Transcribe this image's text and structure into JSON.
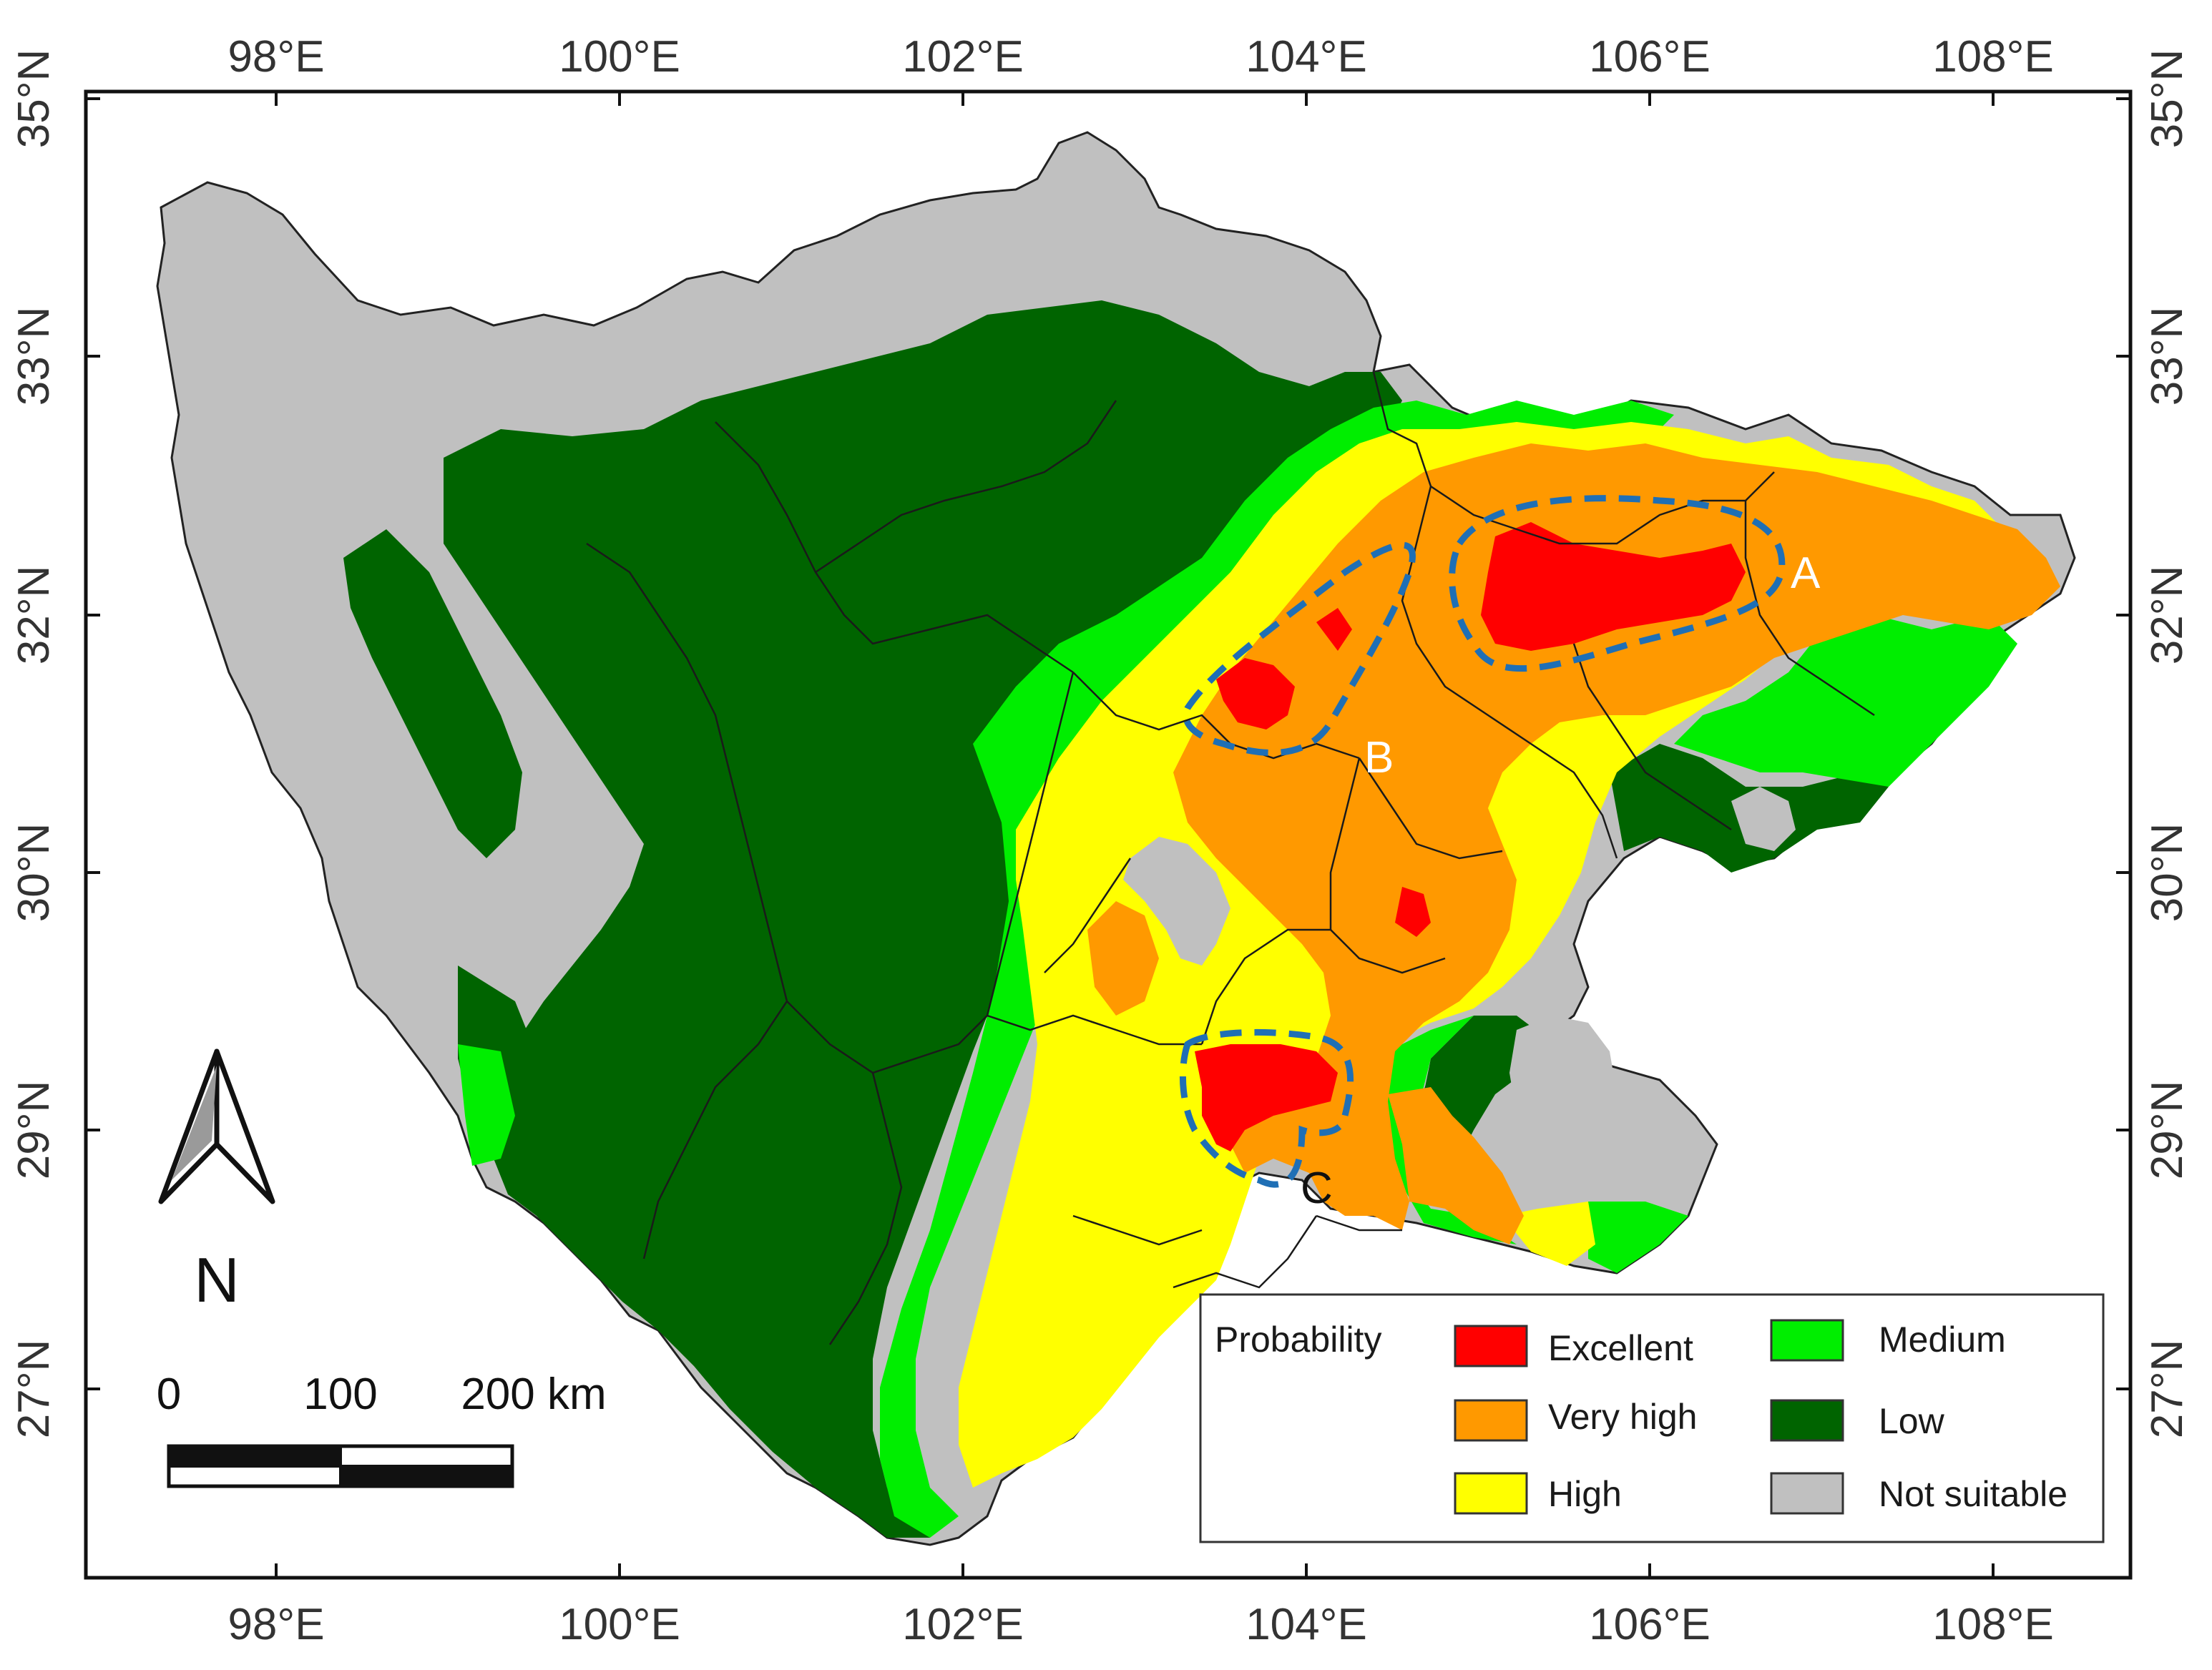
{
  "map": {
    "x_ticks": [
      "98°E",
      "100°E",
      "102°E",
      "104°E",
      "106°E",
      "108°E"
    ],
    "y_ticks": [
      "35°N",
      "33°N",
      "32°N",
      "30°N",
      "29°N",
      "27°N"
    ],
    "zones": [
      {
        "id": "A",
        "label": "A",
        "color": "#ffffff"
      },
      {
        "id": "B",
        "label": "B",
        "color": "#ffffff"
      },
      {
        "id": "C",
        "label": "C",
        "color": "#111111"
      }
    ],
    "zone_outline_color": "#1f6fb5"
  },
  "north_arrow": {
    "label": "N",
    "icon": "north-arrow-icon"
  },
  "scale_bar": {
    "labels": [
      "0",
      "100",
      "200 km"
    ]
  },
  "legend": {
    "title": "Probability",
    "items": [
      {
        "label": "Excellent",
        "color": "#ff0000"
      },
      {
        "label": "Very high",
        "color": "#ff9900"
      },
      {
        "label": "High",
        "color": "#ffff00"
      },
      {
        "label": "Medium",
        "color": "#00ee00"
      },
      {
        "label": "Low",
        "color": "#006400"
      },
      {
        "label": "Not suitable",
        "color": "#c0c0c0"
      }
    ]
  }
}
